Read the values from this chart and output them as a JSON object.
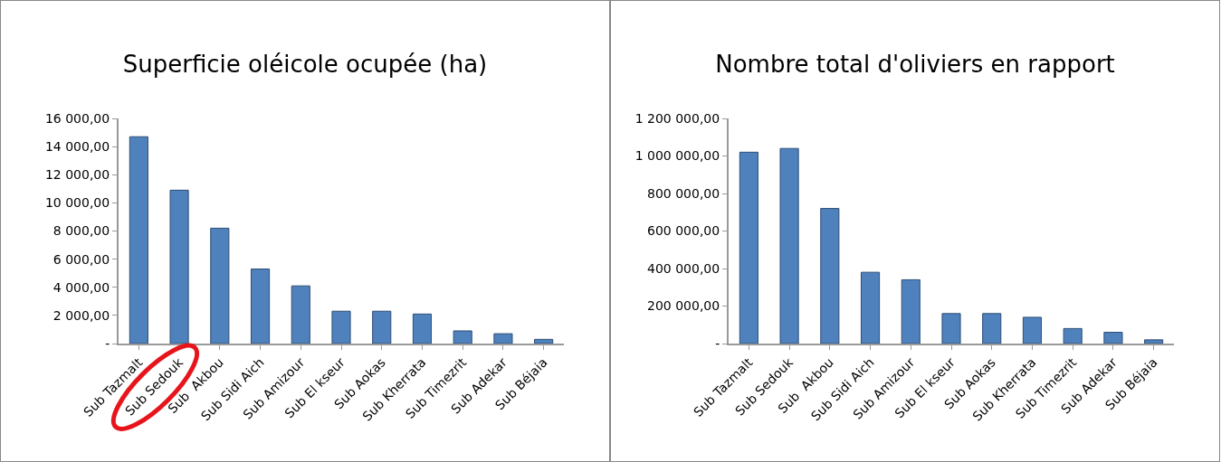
{
  "chart_data": [
    {
      "type": "bar",
      "title": "Superficie oléicole ocupée (ha)",
      "categories": [
        "Sub Tazmalt",
        "Sub Sedouk",
        "Sub  Akbou",
        "Sub Sidi Aich",
        "Sub Amizour",
        "Sub El kseur",
        "Sub Aokas",
        "Sub Kherrata",
        "Sub Timezrit",
        "Sub Adekar",
        "Sub Béjaia"
      ],
      "values": [
        14700,
        10900,
        8200,
        5300,
        4100,
        2300,
        2300,
        2100,
        900,
        700,
        300
      ],
      "color": "#4f81bd",
      "ylim": [
        0,
        16000
      ],
      "yticks": [
        {
          "value": 0,
          "label": "-"
        },
        {
          "value": 2000,
          "label": "2 000,00"
        },
        {
          "value": 4000,
          "label": "4 000,00"
        },
        {
          "value": 6000,
          "label": "6 000,00"
        },
        {
          "value": 8000,
          "label": "8 000,00"
        },
        {
          "value": 10000,
          "label": "10 000,00"
        },
        {
          "value": 12000,
          "label": "12 000,00"
        },
        {
          "value": 14000,
          "label": "14 000,00"
        },
        {
          "value": 16000,
          "label": "16 000,00"
        }
      ],
      "grid": false
    },
    {
      "type": "bar",
      "title": "Nombre total d'oliviers en rapport",
      "categories": [
        "Sub Tazmalt",
        "Sub Sedouk",
        "Sub  Akbou",
        "Sub Sidi Aich",
        "Sub Amizour",
        "Sub El kseur",
        "Sub Aokas",
        "Sub Kherrata",
        "Sub Timezrit",
        "Sub Adekar",
        "Sub Béjaia"
      ],
      "values": [
        1020000,
        1040000,
        720000,
        380000,
        340000,
        160000,
        160000,
        140000,
        80000,
        60000,
        20000
      ],
      "color": "#4f81bd",
      "ylim": [
        0,
        1200000
      ],
      "yticks": [
        {
          "value": 0,
          "label": "-"
        },
        {
          "value": 200000,
          "label": "200 000,00"
        },
        {
          "value": 400000,
          "label": "400 000,00"
        },
        {
          "value": 600000,
          "label": "600 000,00"
        },
        {
          "value": 800000,
          "label": "800 000,00"
        },
        {
          "value": 1000000,
          "label": "1 000 000,00"
        },
        {
          "value": 1200000,
          "label": "1 200 000,00"
        }
      ],
      "grid": false
    }
  ]
}
